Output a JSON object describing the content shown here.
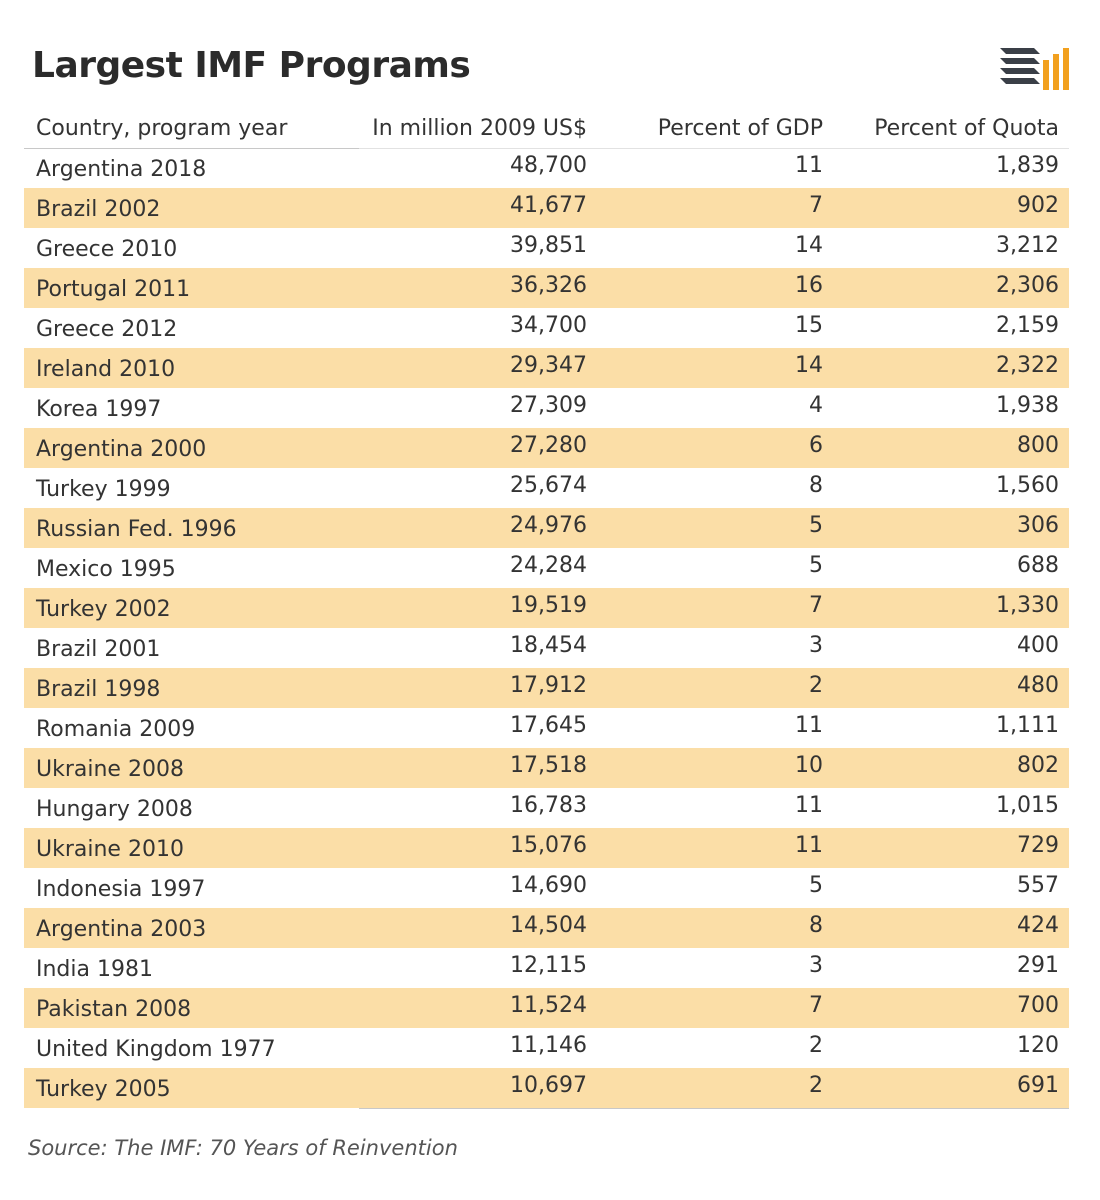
{
  "title": "Largest IMF Programs",
  "source": "Source: The IMF: 70 Years of Reinvention",
  "colors": {
    "row_highlight": "#fbdea7",
    "logo_dark": "#3a3f47",
    "logo_accent": "#f2a01e"
  },
  "logo_icon": "stacked-bars-logo-icon",
  "chart_data": {
    "type": "table",
    "columns": [
      "Country, program year",
      "In million 2009 US$",
      "Percent of GDP",
      "Percent of Quota"
    ],
    "rows": [
      [
        "Argentina 2018",
        "48,700",
        "11",
        "1,839"
      ],
      [
        "Brazil 2002",
        "41,677",
        "7",
        "902"
      ],
      [
        "Greece 2010",
        "39,851",
        "14",
        "3,212"
      ],
      [
        "Portugal 2011",
        "36,326",
        "16",
        "2,306"
      ],
      [
        "Greece 2012",
        "34,700",
        "15",
        "2,159"
      ],
      [
        "Ireland 2010",
        "29,347",
        "14",
        "2,322"
      ],
      [
        "Korea 1997",
        "27,309",
        "4",
        "1,938"
      ],
      [
        "Argentina 2000",
        "27,280",
        "6",
        "800"
      ],
      [
        "Turkey 1999",
        "25,674",
        "8",
        "1,560"
      ],
      [
        "Russian Fed. 1996",
        "24,976",
        "5",
        "306"
      ],
      [
        "Mexico 1995",
        "24,284",
        "5",
        "688"
      ],
      [
        "Turkey 2002",
        "19,519",
        "7",
        "1,330"
      ],
      [
        "Brazil 2001",
        "18,454",
        "3",
        "400"
      ],
      [
        "Brazil 1998",
        "17,912",
        "2",
        "480"
      ],
      [
        "Romania 2009",
        "17,645",
        "11",
        "1,111"
      ],
      [
        "Ukraine 2008",
        "17,518",
        "10",
        "802"
      ],
      [
        "Hungary 2008",
        "16,783",
        "11",
        "1,015"
      ],
      [
        "Ukraine 2010",
        "15,076",
        "11",
        "729"
      ],
      [
        "Indonesia 1997",
        "14,690",
        "5",
        "557"
      ],
      [
        "Argentina 2003",
        "14,504",
        "8",
        "424"
      ],
      [
        "India 1981",
        "12,115",
        "3",
        "291"
      ],
      [
        "Pakistan 2008",
        "11,524",
        "7",
        "700"
      ],
      [
        "United Kingdom 1977",
        "11,146",
        "2",
        "120"
      ],
      [
        "Turkey 2005",
        "10,697",
        "2",
        "691"
      ]
    ]
  }
}
